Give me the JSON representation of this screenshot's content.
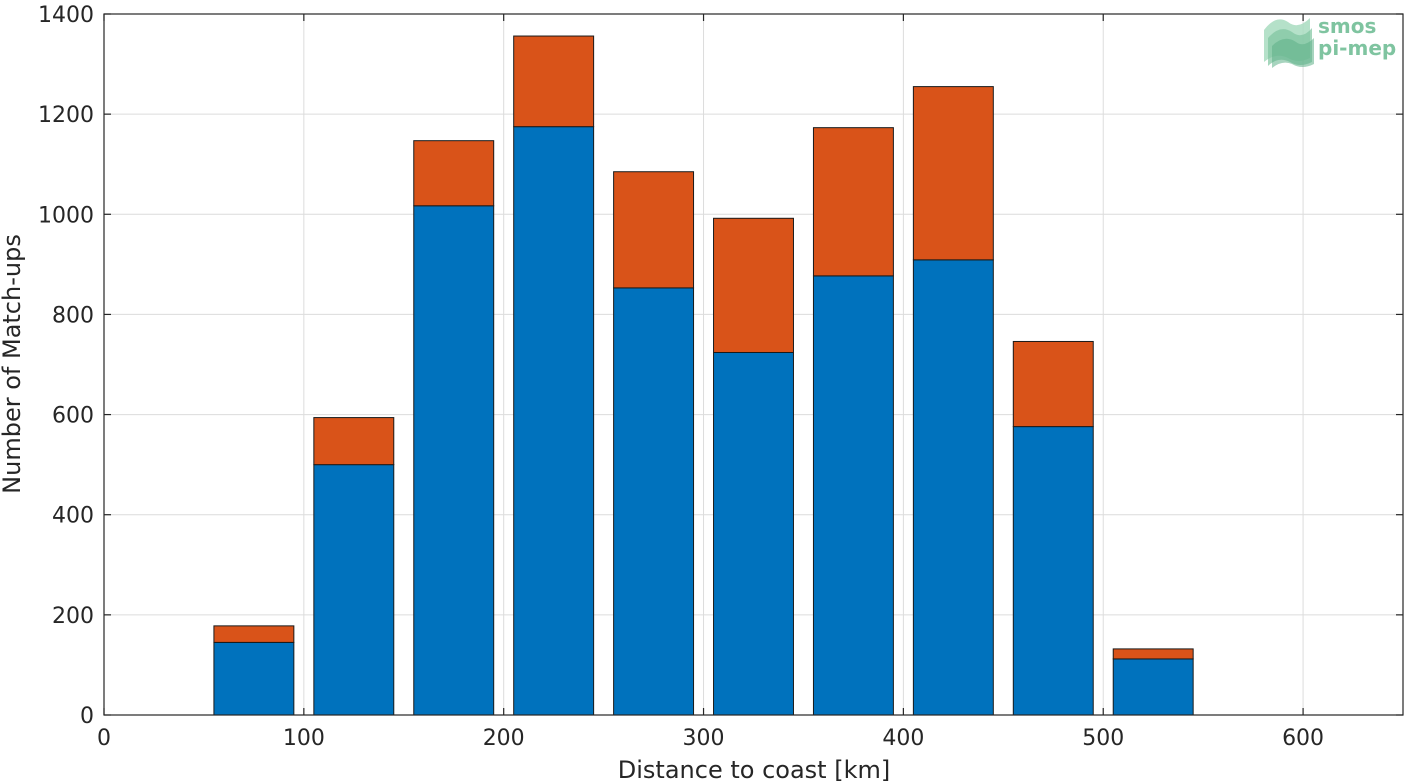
{
  "chart_data": {
    "type": "bar",
    "stacked": true,
    "x": [
      75,
      125,
      175,
      225,
      275,
      325,
      375,
      425,
      475,
      525
    ],
    "series": [
      {
        "color": "#0072bd",
        "values": [
          145,
          500,
          1017,
          1175,
          853,
          724,
          877,
          909,
          576,
          112
        ]
      },
      {
        "color": "#d95319",
        "values": [
          33,
          94,
          130,
          181,
          232,
          268,
          296,
          346,
          170,
          20
        ]
      }
    ],
    "xlabel": "Distance to coast [km]",
    "ylabel": "Number of Match-ups",
    "xlim": [
      0,
      650
    ],
    "ylim": [
      0,
      1400
    ],
    "xticks": [
      0,
      100,
      200,
      300,
      400,
      500,
      600
    ],
    "yticks": [
      0,
      200,
      400,
      600,
      800,
      1000,
      1200,
      1400
    ],
    "grid": true
  },
  "logo": {
    "line1": "smos",
    "line2": "pi-mep",
    "color": "#7fc4a0"
  }
}
